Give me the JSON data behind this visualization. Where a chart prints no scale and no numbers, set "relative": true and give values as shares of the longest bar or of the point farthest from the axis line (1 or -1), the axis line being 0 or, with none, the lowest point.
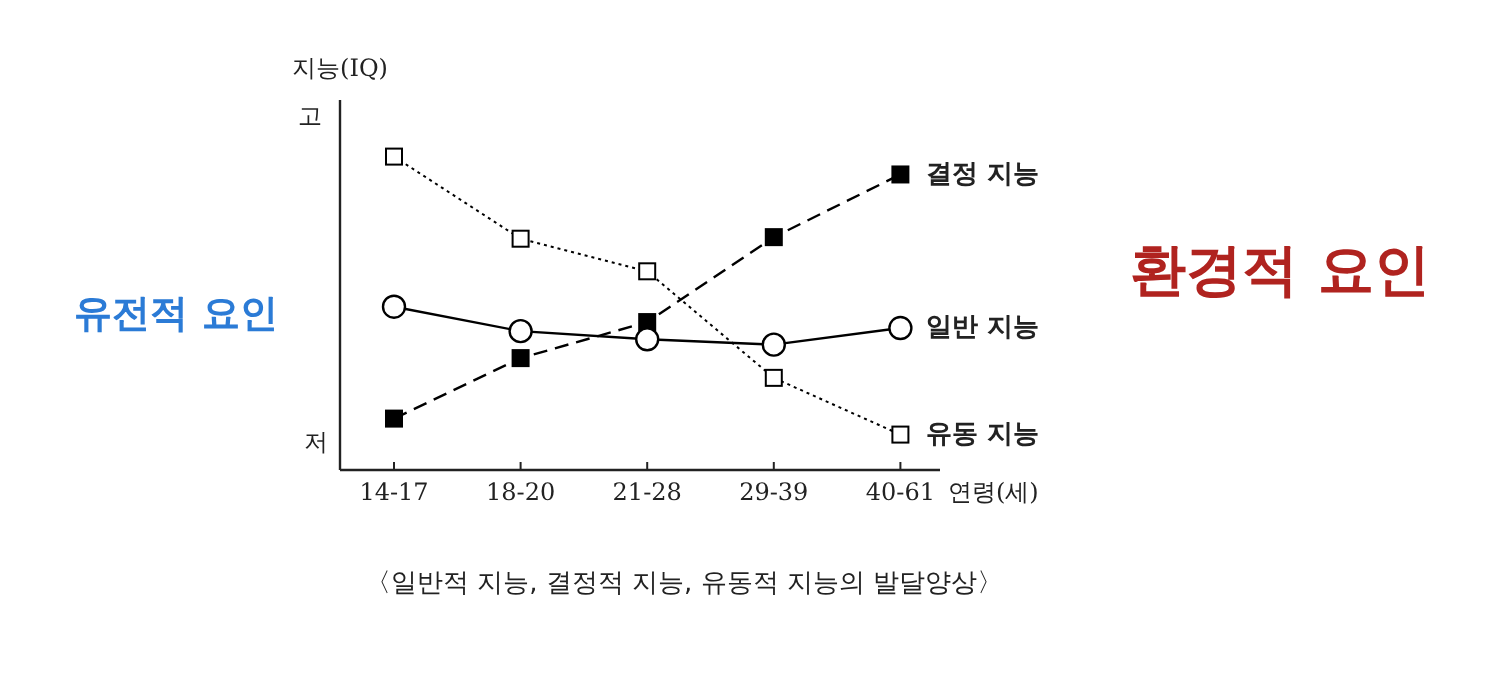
{
  "chart_data": {
    "type": "line",
    "relative": true,
    "ylabel": "지능(IQ)",
    "xlabel": "연령(세)",
    "categories": [
      "14-17",
      "18-20",
      "21-28",
      "29-39",
      "40-61"
    ],
    "series": [
      {
        "name": "결정 지능",
        "color": "#000000",
        "marker": "square",
        "line_style": "dashed",
        "colors": [
          "#000000",
          "#000000",
          "#000000",
          "#000000",
          "#000000"
        ],
        "values": [
          0.164,
          0.357,
          0.472,
          0.743,
          0.943
        ]
      },
      {
        "name": "일반 지능",
        "color": "#000000",
        "marker": "circle",
        "line_style": "solid",
        "colors": [
          "#ffffff",
          "#ffffff",
          "#ffffff",
          "#ffffff",
          "#ffffff"
        ],
        "values": [
          0.521,
          0.443,
          0.417,
          0.4,
          0.453
        ]
      },
      {
        "name": "유동 지능",
        "color": "#000000",
        "marker": "square",
        "line_style": "dotted",
        "colors": [
          "#ffffff",
          "#ffffff",
          "#ffffff",
          "#ffffff",
          "#ffffff"
        ],
        "values": [
          1,
          0.738,
          0.634,
          0.294,
          0.113
        ]
      }
    ],
    "annotations": [
      "고",
      "저",
      "유전적 요인",
      "환경적 요인",
      "〈일반적 지능, 결정적 지능, 유동적 지능의 발달양상〉"
    ],
    "grid": false
  }
}
